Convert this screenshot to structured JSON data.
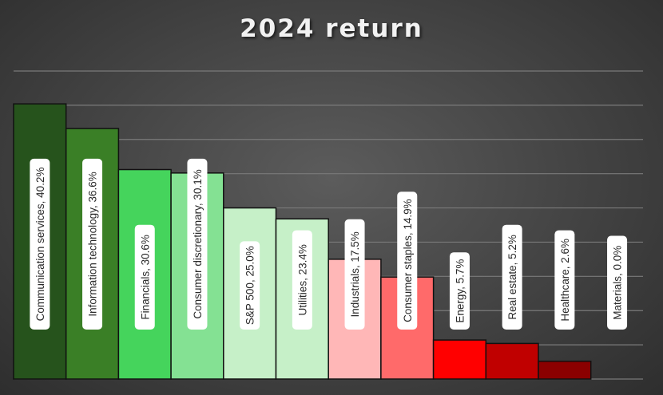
{
  "chart_data": {
    "type": "bar",
    "title": "2024 return",
    "xlabel": "",
    "ylabel": "",
    "ylim": [
      0,
      45
    ],
    "grid": true,
    "legend": "none",
    "categories": [
      "Communication services",
      "Information technology",
      "Financials",
      "Consumer discretionary",
      "S&P 500",
      "Utilities",
      "Industrials",
      "Consumer staples",
      "Energy",
      "Real estate",
      "Healthcare",
      "Materials"
    ],
    "values": [
      40.2,
      36.6,
      30.6,
      30.1,
      25.0,
      23.4,
      17.5,
      14.9,
      5.7,
      5.2,
      2.6,
      0.0
    ],
    "labels": [
      "Communication services, 40.2%",
      "Information technology, 36.6%",
      "Financials, 30.6%",
      "Consumer discretionary, 30.1%",
      "S&P 500, 25.0%",
      "Utilities, 23.4%",
      "Industrials, 17.5%",
      "Consumer staples, 14.9%",
      "Energy, 5.7%",
      "Real estate, 5.2%",
      "Healthcare, 2.6%",
      "Materials, 0.0%"
    ],
    "colors": [
      "#26531c",
      "#3a7f26",
      "#45d45c",
      "#84e193",
      "#c6f0c8",
      "#c6f0c8",
      "#ffb7b7",
      "#ff6a6a",
      "#ff0000",
      "#c00000",
      "#8b0000",
      "#5a0000"
    ]
  }
}
